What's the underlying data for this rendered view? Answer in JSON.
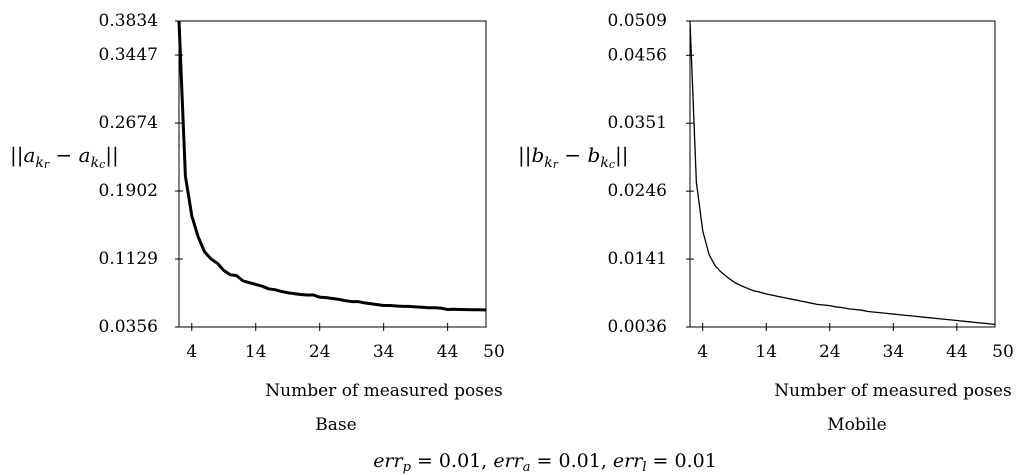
{
  "chart_data": [
    {
      "type": "line",
      "title": "",
      "caption": "Base",
      "xlabel": "Number of measured poses",
      "ylabel": "||a_kr − a_kc||",
      "ylabel_parts": {
        "open": "||",
        "var": "a",
        "sub1": "k",
        "sub1b": "r",
        "mid": " − ",
        "var2": "a",
        "sub2": "k",
        "sub2b": "c",
        "close": "||"
      },
      "xlim": [
        2,
        50
      ],
      "ylim": [
        0.0356,
        0.3834
      ],
      "xticks": [
        4,
        14,
        24,
        34,
        44,
        50
      ],
      "yticks": [
        0.3834,
        0.3447,
        0.2674,
        0.1902,
        0.1129,
        0.0356
      ],
      "ytick_labels": [
        "0.3834",
        "0.3447",
        "0.2674",
        "0.1902",
        "0.1129",
        "0.0356"
      ],
      "line_style": "thick",
      "x": [
        2,
        3,
        4,
        5,
        6,
        7,
        8,
        9,
        10,
        11,
        12,
        13,
        14,
        15,
        16,
        17,
        18,
        19,
        20,
        21,
        22,
        23,
        24,
        25,
        26,
        27,
        28,
        29,
        30,
        31,
        32,
        33,
        34,
        35,
        36,
        37,
        38,
        39,
        40,
        41,
        42,
        43,
        44,
        45,
        46,
        47,
        48,
        49,
        50
      ],
      "values": [
        0.3834,
        0.207,
        0.162,
        0.138,
        0.121,
        0.113,
        0.108,
        0.1,
        0.095,
        0.094,
        0.088,
        0.086,
        0.084,
        0.082,
        0.079,
        0.078,
        0.076,
        0.0745,
        0.0735,
        0.0725,
        0.072,
        0.072,
        0.0695,
        0.069,
        0.068,
        0.067,
        0.0655,
        0.0645,
        0.0645,
        0.063,
        0.062,
        0.061,
        0.06,
        0.06,
        0.0595,
        0.059,
        0.059,
        0.0585,
        0.058,
        0.0575,
        0.0575,
        0.057,
        0.0555,
        0.0558,
        0.0555,
        0.0553,
        0.0552,
        0.0552,
        0.0549
      ]
    },
    {
      "type": "line",
      "title": "",
      "caption": "Mobile",
      "xlabel": "Number of measured poses",
      "ylabel": "||b_kr − b_kc||",
      "ylabel_parts": {
        "open": "||",
        "var": "b",
        "sub1": "k",
        "sub1b": "r",
        "mid": " − ",
        "var2": "b",
        "sub2": "k",
        "sub2b": "c",
        "close": "||"
      },
      "xlim": [
        2,
        50
      ],
      "ylim": [
        0.0036,
        0.0509
      ],
      "xticks": [
        4,
        14,
        24,
        34,
        44,
        50
      ],
      "yticks": [
        0.0509,
        0.0456,
        0.0351,
        0.0246,
        0.0141,
        0.0036
      ],
      "ytick_labels": [
        "0.0509",
        "0.0456",
        "0.0351",
        "0.0246",
        "0.0141",
        "0.0036"
      ],
      "line_style": "thin",
      "x": [
        2,
        3,
        4,
        5,
        6,
        7,
        8,
        9,
        10,
        11,
        12,
        13,
        14,
        15,
        16,
        17,
        18,
        19,
        20,
        21,
        22,
        23,
        24,
        25,
        26,
        27,
        28,
        29,
        30,
        31,
        32,
        33,
        34,
        35,
        36,
        37,
        38,
        39,
        40,
        41,
        42,
        43,
        44,
        45,
        46,
        47,
        48,
        49,
        50
      ],
      "values": [
        0.0509,
        0.026,
        0.0185,
        0.0148,
        0.013,
        0.012,
        0.0112,
        0.0105,
        0.01,
        0.0096,
        0.0092,
        0.009,
        0.0087,
        0.0085,
        0.0083,
        0.0081,
        0.0079,
        0.0077,
        0.0075,
        0.0073,
        0.0071,
        0.007,
        0.0069,
        0.0067,
        0.0066,
        0.0064,
        0.0063,
        0.0062,
        0.006,
        0.0059,
        0.0058,
        0.0057,
        0.0056,
        0.0055,
        0.0054,
        0.0053,
        0.0052,
        0.0051,
        0.005,
        0.0049,
        0.0048,
        0.0047,
        0.0046,
        0.0045,
        0.0044,
        0.0043,
        0.0042,
        0.0041,
        0.004
      ]
    }
  ],
  "footer": {
    "errp_var": "err",
    "errp_sub": "p",
    "errp_val": " = 0.01, ",
    "erra_var": "err",
    "erra_sub": "a",
    "erra_val": " = 0.01, ",
    "errl_var": "err",
    "errl_sub": "l",
    "errl_val": " = 0.01"
  }
}
